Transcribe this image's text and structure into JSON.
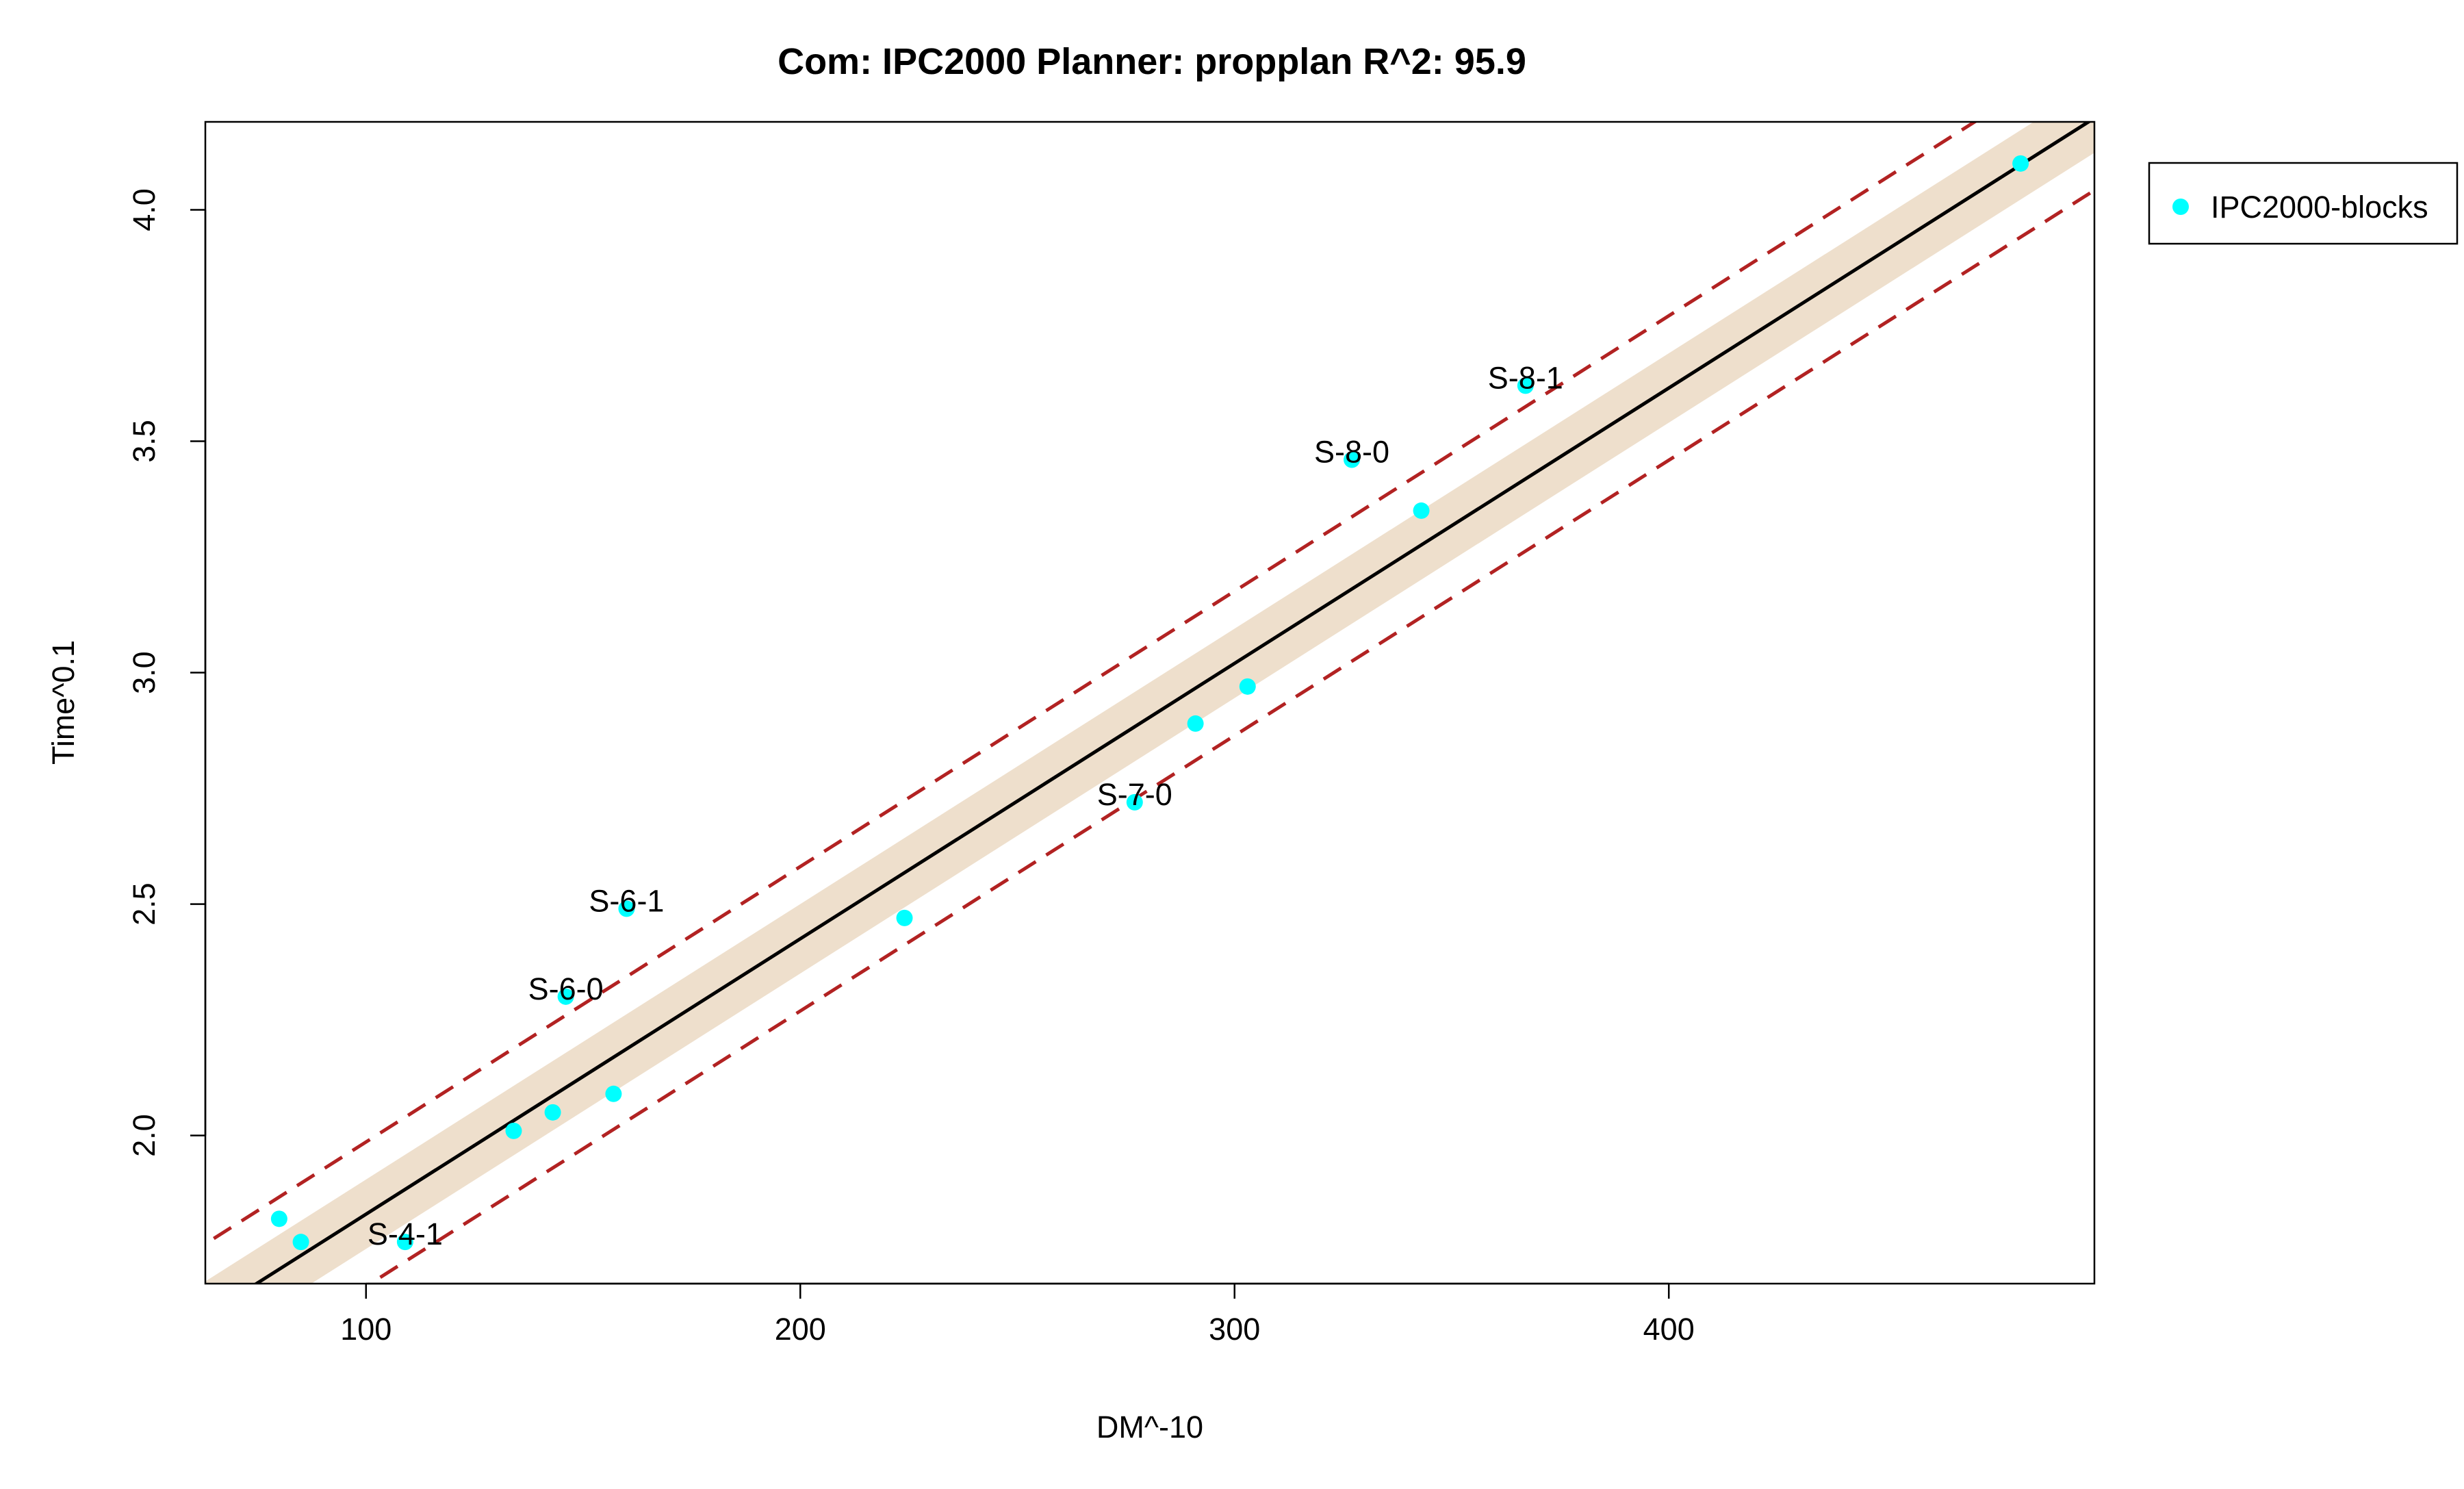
{
  "chart_data": {
    "type": "scatter",
    "title": "Com: IPC2000 Planner: propplan R^2: 95.9",
    "xlabel": "DM^-10",
    "ylabel": "Time^0.1",
    "xlim": [
      63,
      498
    ],
    "ylim": [
      1.68,
      4.19
    ],
    "x_ticks": [
      100,
      200,
      300,
      400
    ],
    "y_ticks": [
      2.0,
      2.5,
      3.0,
      3.5,
      4.0
    ],
    "x_tick_labels": [
      "100",
      "200",
      "300",
      "400"
    ],
    "y_tick_labels": [
      "2.0",
      "2.5",
      "3.0",
      "3.5",
      "4.0"
    ],
    "grid": false,
    "legend_position": "right",
    "series": [
      {
        "name": "IPC2000-blocks",
        "color": "#00ffff",
        "points": [
          {
            "x": 80,
            "y": 1.82
          },
          {
            "x": 85,
            "y": 1.77
          },
          {
            "x": 109,
            "y": 1.77,
            "label": "S-4-1"
          },
          {
            "x": 134,
            "y": 2.01
          },
          {
            "x": 143,
            "y": 2.05
          },
          {
            "x": 146,
            "y": 2.3,
            "label": "S-6-0"
          },
          {
            "x": 157,
            "y": 2.09
          },
          {
            "x": 160,
            "y": 2.49,
            "label": "S-6-1"
          },
          {
            "x": 224,
            "y": 2.47
          },
          {
            "x": 277,
            "y": 2.72,
            "label": "S-7-0"
          },
          {
            "x": 291,
            "y": 2.89
          },
          {
            "x": 303,
            "y": 2.97
          },
          {
            "x": 327,
            "y": 3.46,
            "label": "S-8-0"
          },
          {
            "x": 343,
            "y": 3.35
          },
          {
            "x": 367,
            "y": 3.62,
            "label": "S-8-1"
          },
          {
            "x": 481,
            "y": 4.1
          }
        ]
      }
    ],
    "fit_line": {
      "slope": 0.00595,
      "intercept": 1.235,
      "color": "#000000"
    },
    "confidence_band": {
      "offset": 0.075,
      "color": "#eedfcc"
    },
    "prediction_band": {
      "offset": 0.156,
      "color": "#b22222"
    }
  }
}
